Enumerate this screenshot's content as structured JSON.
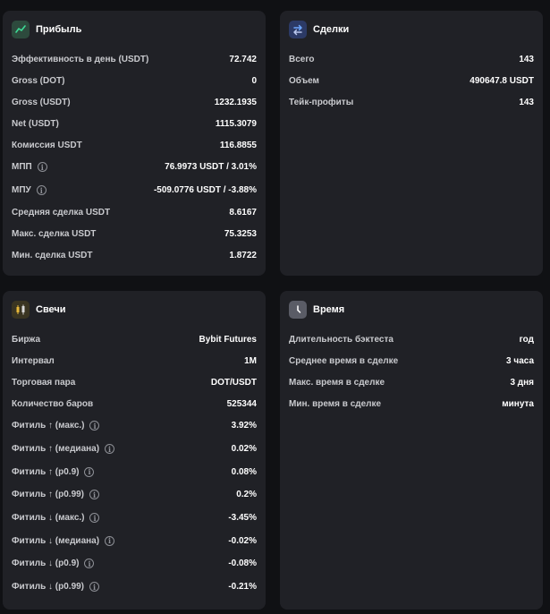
{
  "profit": {
    "title": "Прибыль",
    "icon": "trend-up-icon",
    "rows": [
      {
        "label": "Эффективность в день (USDT)",
        "value": "72.742"
      },
      {
        "label": "Gross (DOT)",
        "value": "0"
      },
      {
        "label": "Gross (USDT)",
        "value": "1232.1935"
      },
      {
        "label": "Net (USDT)",
        "value": "1115.3079"
      },
      {
        "label": "Комиссия USDT",
        "value": "116.8855"
      },
      {
        "label": "МПП",
        "value": "76.9973 USDT / 3.01%"
      },
      {
        "label": "МПУ",
        "value": "-509.0776 USDT / -3.88%"
      },
      {
        "label": "Средняя сделка USDT",
        "value": "8.6167"
      },
      {
        "label": "Макс. сделка USDT",
        "value": "75.3253"
      },
      {
        "label": "Мин. сделка USDT",
        "value": "1.8722"
      }
    ]
  },
  "deals": {
    "title": "Сделки",
    "icon": "swap-arrows-icon",
    "rows": [
      {
        "label": "Всего",
        "value": "143"
      },
      {
        "label": "Объем",
        "value": "490647.8 USDT"
      },
      {
        "label": "Тейк-профиты",
        "value": "143"
      }
    ]
  },
  "candles": {
    "title": "Свечи",
    "icon": "candles-icon",
    "rows": [
      {
        "label": "Биржа",
        "value": "Bybit Futures"
      },
      {
        "label": "Интервал",
        "value": "1M"
      },
      {
        "label": "Торговая пара",
        "value": "DOT/USDT"
      },
      {
        "label": "Количество баров",
        "value": "525344"
      },
      {
        "label": "Фитиль ↑ (макс.)",
        "value": "3.92%"
      },
      {
        "label": "Фитиль ↑ (медиана)",
        "value": "0.02%"
      },
      {
        "label": "Фитиль ↑ (p0.9)",
        "value": "0.08%"
      },
      {
        "label": "Фитиль ↑ (p0.99)",
        "value": "0.2%"
      },
      {
        "label": "Фитиль ↓ (макс.)",
        "value": "-3.45%"
      },
      {
        "label": "Фитиль ↓ (медиана)",
        "value": "-0.02%"
      },
      {
        "label": "Фитиль ↓ (p0.9)",
        "value": "-0.08%"
      },
      {
        "label": "Фитиль ↓ (p0.99)",
        "value": "-0.21%"
      }
    ]
  },
  "time": {
    "title": "Время",
    "icon": "clock-icon",
    "rows": [
      {
        "label": "Длительность бэктеста",
        "value": "год"
      },
      {
        "label": "Среднее время в сделке",
        "value": "3 часа"
      },
      {
        "label": "Макс. время в сделке",
        "value": "3 дня"
      },
      {
        "label": "Мин. время в сделке",
        "value": "минута"
      }
    ]
  },
  "info_icon": "i",
  "colors": {
    "background": "#101114",
    "panel": "#202126",
    "profit_icon_bg": "#2d4a3d",
    "profit_icon_fg": "#3ddc97",
    "deals_icon_bg": "#2c3a66",
    "candles_icon_bg": "#3a3522",
    "time_icon_bg": "#5a5c66"
  }
}
